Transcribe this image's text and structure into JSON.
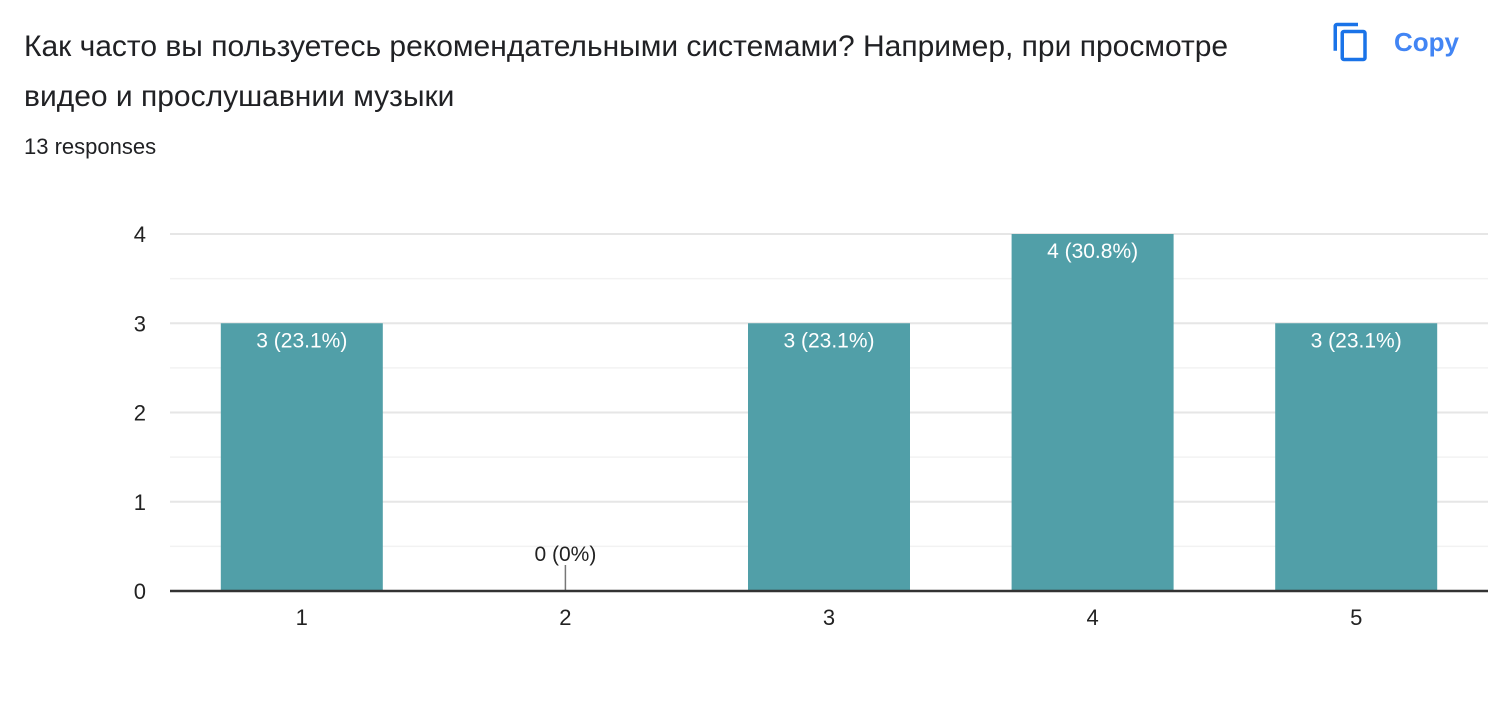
{
  "question": {
    "title": "Как часто вы пользуетесь рекомендательными системами? Например, при просмотре видео и прослушавнии музыки",
    "responses": "13 responses"
  },
  "toolbar": {
    "copy_label": "Copy",
    "copy_icon": "copy-icon"
  },
  "colors": {
    "bar": "#519fa8",
    "accent": "#4285f4",
    "grid_major": "#e6e6e6",
    "grid_minor": "#f2f2f2",
    "axis": "#333333"
  },
  "chart_data": {
    "type": "bar",
    "categories": [
      "1",
      "2",
      "3",
      "4",
      "5"
    ],
    "values": [
      3,
      0,
      3,
      4,
      3
    ],
    "data_labels": [
      "3 (23.1%)",
      "0 (0%)",
      "3 (23.1%)",
      "4 (30.8%)",
      "3 (23.1%)"
    ],
    "y_ticks": [
      "0",
      "1",
      "2",
      "3",
      "4"
    ],
    "ylim": [
      0,
      4
    ],
    "grid": true,
    "legend": "none",
    "title": "",
    "xlabel": "",
    "ylabel": ""
  }
}
